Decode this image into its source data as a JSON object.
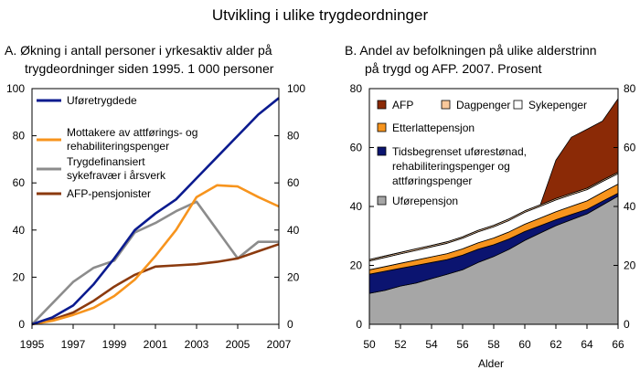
{
  "figure_title": "Utvikling i ulike trygdeordninger",
  "chart_data": [
    {
      "type": "line",
      "title_lines": [
        "A.  Økning i antall personer i yrkesaktiv alder på",
        "trygdeordninger siden 1995. 1 000 personer"
      ],
      "x": [
        1995,
        1996,
        1997,
        1998,
        1999,
        2000,
        2001,
        2002,
        2003,
        2004,
        2005,
        2006,
        2007
      ],
      "xticks": [
        1995,
        1997,
        1999,
        2001,
        2003,
        2005,
        2007
      ],
      "xlim": [
        1995,
        2007
      ],
      "yticks": [
        0,
        20,
        40,
        60,
        80,
        100
      ],
      "ylim": [
        0,
        100
      ],
      "series": [
        {
          "name": "Uføretrygdede",
          "color": "#0b1b8f",
          "values": [
            0,
            3,
            8,
            17,
            28,
            40,
            47,
            53,
            62,
            71,
            80,
            89,
            96
          ]
        },
        {
          "name": "Mottakere av attførings- og rehabiliteringspenger",
          "color": "#f7941d",
          "values": [
            0,
            1.5,
            4,
            7,
            12,
            19,
            29,
            40,
            54,
            59,
            58.5,
            54,
            50
          ]
        },
        {
          "name": "Trygdefinansiert sykefravær i årsverk",
          "color": "#8c8c8c",
          "values": [
            0,
            9,
            18,
            24,
            27,
            39,
            43,
            48,
            52,
            40,
            28,
            35,
            35
          ]
        },
        {
          "name": "AFP-pensjonister",
          "color": "#8b3a0e",
          "values": [
            0,
            2,
            5,
            10,
            16,
            21,
            24.5,
            25,
            25.5,
            26.5,
            28,
            31,
            34
          ]
        }
      ],
      "legend_lines": [
        [
          "Uføretrygdede"
        ],
        [
          "Mottakere av attførings- og",
          "rehabiliteringspenger"
        ],
        [
          "Trygdefinansiert",
          "sykefravær i årsverk"
        ],
        [
          "AFP-pensjonister"
        ]
      ]
    },
    {
      "type": "area",
      "stacked": true,
      "title_lines": [
        "B.  Andel av befolkningen på ulike alderstrinn",
        "på trygd og AFP. 2007. Prosent"
      ],
      "x": [
        50,
        51,
        52,
        53,
        54,
        55,
        56,
        57,
        58,
        59,
        60,
        61,
        62,
        63,
        64,
        65,
        66
      ],
      "xticks": [
        50,
        52,
        54,
        56,
        58,
        60,
        62,
        64,
        66
      ],
      "xlim": [
        50,
        66
      ],
      "xlabel": "Alder",
      "yticks": [
        0,
        20,
        40,
        60,
        80
      ],
      "ylim": [
        0,
        80
      ],
      "series": [
        {
          "name": "Uførepensjon",
          "color": "#a6a6a6",
          "values": [
            10.5,
            11.5,
            13,
            14,
            15.5,
            17,
            18.5,
            21,
            23,
            25.5,
            28.5,
            31,
            33.5,
            35.5,
            37.5,
            40.5,
            43.5
          ]
        },
        {
          "name": "Tidsbegrenset uførestønad, rehabiliteringspenger og attføringspenger",
          "color": "#0b1470",
          "values": [
            6.5,
            6.5,
            6,
            6,
            5.5,
            5,
            5,
            4.5,
            4,
            3.5,
            3,
            2.5,
            2,
            1.8,
            1.5,
            1.3,
            1
          ]
        },
        {
          "name": "Etterlattepensjon",
          "color": "#f7941d",
          "values": [
            1.5,
            1.6,
            1.7,
            1.8,
            1.9,
            2.0,
            2.1,
            2.2,
            2.3,
            2.4,
            2.5,
            2.6,
            2.7,
            2.8,
            2.9,
            3.0,
            3.1
          ]
        },
        {
          "name": "Sykepenger",
          "color": "#ffffff",
          "values": [
            3,
            3.1,
            3.2,
            3.3,
            3.4,
            3.5,
            3.6,
            3.7,
            3.8,
            3.9,
            4,
            4,
            4,
            3.9,
            3.8,
            3.7,
            3.5
          ]
        },
        {
          "name": "Dagpenger",
          "color": "#f9c89b",
          "values": [
            0.5,
            0.5,
            0.5,
            0.5,
            0.5,
            0.5,
            0.5,
            0.5,
            0.5,
            0.5,
            0.5,
            0.5,
            0.5,
            0.5,
            0.5,
            0.5,
            0.5
          ]
        },
        {
          "name": "AFP",
          "color": "#8b2a06",
          "values": [
            0,
            0,
            0,
            0,
            0,
            0,
            0,
            0,
            0,
            0,
            0,
            0,
            13,
            19,
            20,
            20,
            25
          ]
        }
      ],
      "legend_items": [
        {
          "label": "AFP",
          "color": "#8b2a06"
        },
        {
          "label": "Dagpenger",
          "color": "#f9c89b"
        },
        {
          "label": "Sykepenger",
          "color": "#ffffff"
        },
        {
          "label": "Etterlattepensjon",
          "color": "#f7941d"
        },
        {
          "label_lines": [
            "Tidsbegrenset uførestønad,",
            "rehabiliteringspenger og",
            "attføringspenger"
          ],
          "color": "#0b1470"
        },
        {
          "label": "Uførepensjon",
          "color": "#a6a6a6"
        }
      ]
    }
  ]
}
